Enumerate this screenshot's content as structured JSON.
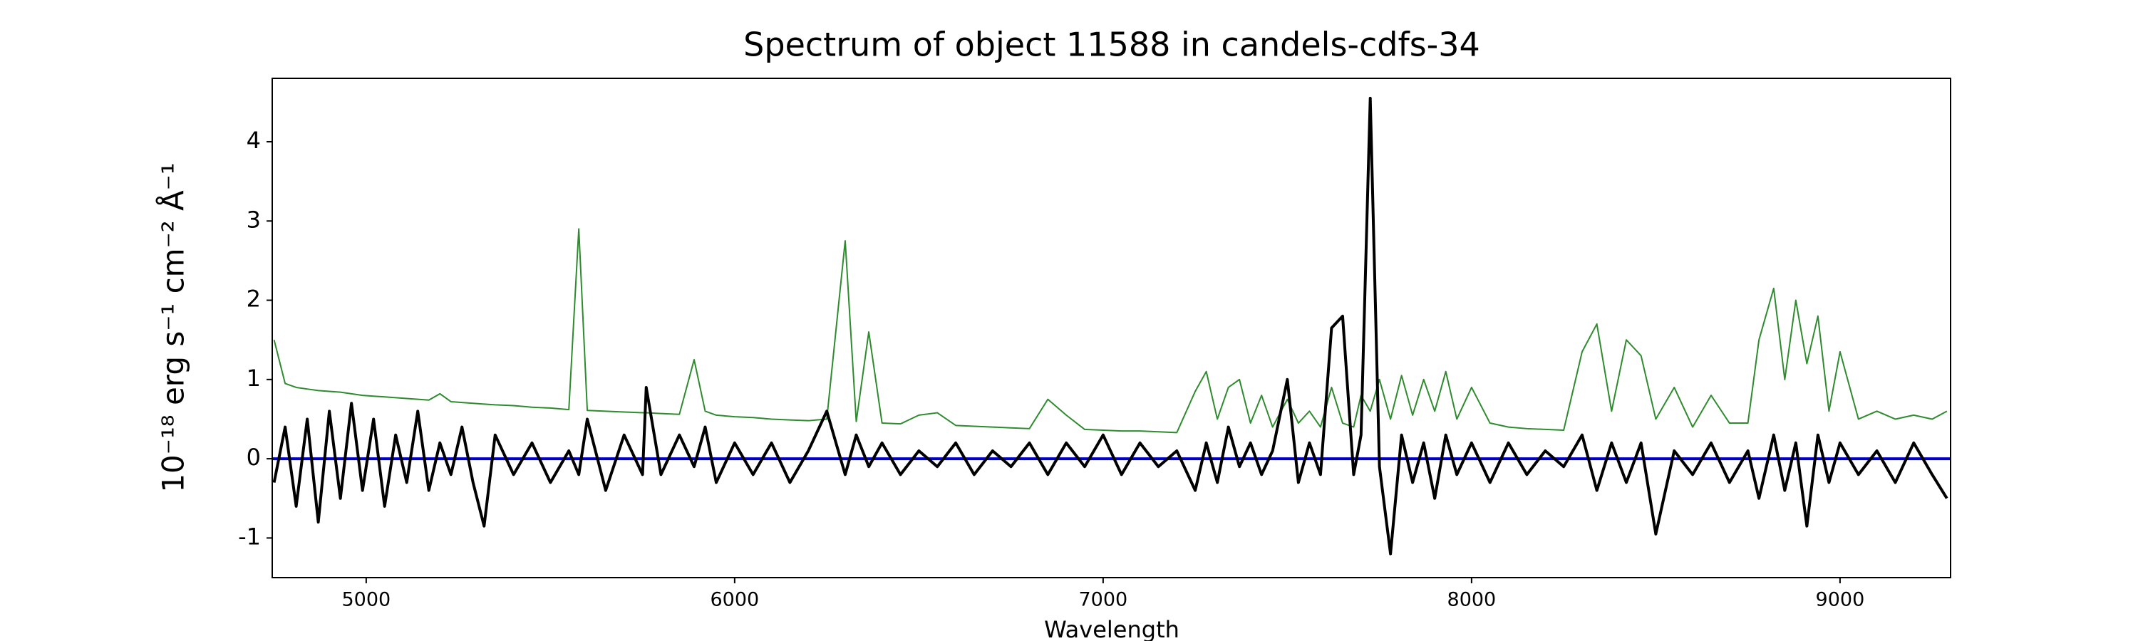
{
  "chart_data": {
    "type": "line",
    "title": "Spectrum of object 11588 in candels-cdfs-34",
    "x_label": "Wavelength",
    "y_label": "10⁻¹⁸ erg s⁻¹ cm⁻² Å⁻¹",
    "x": [
      4750,
      4780,
      4810,
      4840,
      4870,
      4900,
      4930,
      4960,
      4990,
      5020,
      5050,
      5080,
      5110,
      5140,
      5170,
      5200,
      5230,
      5260,
      5290,
      5320,
      5350,
      5400,
      5450,
      5500,
      5550,
      5577,
      5600,
      5650,
      5700,
      5750,
      5760,
      5800,
      5850,
      5890,
      5920,
      5950,
      6000,
      6050,
      6100,
      6150,
      6200,
      6250,
      6300,
      6330,
      6364,
      6400,
      6450,
      6500,
      6550,
      6600,
      6650,
      6700,
      6750,
      6800,
      6850,
      6900,
      6950,
      7000,
      7050,
      7100,
      7150,
      7200,
      7250,
      7280,
      7310,
      7340,
      7370,
      7400,
      7430,
      7460,
      7500,
      7530,
      7560,
      7590,
      7620,
      7650,
      7680,
      7700,
      7725,
      7750,
      7780,
      7810,
      7840,
      7870,
      7900,
      7930,
      7960,
      8000,
      8050,
      8100,
      8150,
      8200,
      8250,
      8300,
      8340,
      8380,
      8420,
      8460,
      8500,
      8550,
      8600,
      8650,
      8700,
      8750,
      8780,
      8820,
      8850,
      8880,
      8910,
      8940,
      8970,
      9000,
      9050,
      9100,
      9150,
      9200,
      9250,
      9290
    ],
    "series": [
      {
        "color": "#2e8b2e",
        "width": 2,
        "values": [
          1.5,
          0.95,
          0.9,
          0.88,
          0.86,
          0.85,
          0.84,
          0.82,
          0.8,
          0.79,
          0.78,
          0.77,
          0.76,
          0.75,
          0.74,
          0.82,
          0.72,
          0.71,
          0.7,
          0.69,
          0.68,
          0.67,
          0.65,
          0.64,
          0.62,
          2.9,
          0.61,
          0.6,
          0.59,
          0.58,
          0.58,
          0.57,
          0.56,
          1.25,
          0.6,
          0.55,
          0.53,
          0.52,
          0.5,
          0.49,
          0.48,
          0.5,
          2.75,
          0.47,
          1.6,
          0.45,
          0.44,
          0.55,
          0.58,
          0.42,
          0.41,
          0.4,
          0.39,
          0.38,
          0.75,
          0.55,
          0.37,
          0.36,
          0.35,
          0.35,
          0.34,
          0.33,
          0.85,
          1.1,
          0.5,
          0.9,
          1.0,
          0.45,
          0.8,
          0.4,
          0.75,
          0.45,
          0.6,
          0.4,
          0.9,
          0.45,
          0.4,
          0.8,
          0.6,
          1.0,
          0.5,
          1.05,
          0.55,
          1.0,
          0.6,
          1.1,
          0.5,
          0.9,
          0.45,
          0.4,
          0.38,
          0.37,
          0.36,
          1.35,
          1.7,
          0.6,
          1.5,
          1.3,
          0.5,
          0.9,
          0.4,
          0.8,
          0.45,
          0.45,
          1.5,
          2.15,
          1.0,
          2.0,
          1.2,
          1.8,
          0.6,
          1.35,
          0.5,
          0.6,
          0.5,
          0.55,
          0.5,
          0.6
        ]
      },
      {
        "color": "#000000",
        "width": 4,
        "values": [
          -0.3,
          0.4,
          -0.6,
          0.5,
          -0.8,
          0.6,
          -0.5,
          0.7,
          -0.4,
          0.5,
          -0.6,
          0.3,
          -0.3,
          0.6,
          -0.4,
          0.2,
          -0.2,
          0.4,
          -0.3,
          -0.85,
          0.3,
          -0.2,
          0.2,
          -0.3,
          0.1,
          -0.2,
          0.5,
          -0.4,
          0.3,
          -0.2,
          0.9,
          -0.2,
          0.3,
          -0.1,
          0.4,
          -0.3,
          0.2,
          -0.2,
          0.2,
          -0.3,
          0.1,
          0.6,
          -0.2,
          0.3,
          -0.1,
          0.2,
          -0.2,
          0.1,
          -0.1,
          0.2,
          -0.2,
          0.1,
          -0.1,
          0.2,
          -0.2,
          0.2,
          -0.1,
          0.3,
          -0.2,
          0.2,
          -0.1,
          0.1,
          -0.4,
          0.2,
          -0.3,
          0.4,
          -0.1,
          0.2,
          -0.2,
          0.1,
          1.0,
          -0.3,
          0.2,
          -0.2,
          1.65,
          1.8,
          -0.2,
          0.3,
          4.55,
          -0.1,
          -1.2,
          0.3,
          -0.3,
          0.2,
          -0.5,
          0.3,
          -0.2,
          0.2,
          -0.3,
          0.2,
          -0.2,
          0.1,
          -0.1,
          0.3,
          -0.4,
          0.2,
          -0.3,
          0.2,
          -0.95,
          0.1,
          -0.2,
          0.2,
          -0.3,
          0.1,
          -0.5,
          0.3,
          -0.4,
          0.2,
          -0.85,
          0.3,
          -0.3,
          0.2,
          -0.2,
          0.1,
          -0.3,
          0.2,
          -0.2,
          -0.5
        ]
      }
    ],
    "zero_line": {
      "value": 0,
      "color": "#0000cc"
    },
    "xlim": [
      4745,
      9300
    ],
    "ylim": [
      -1.5,
      4.8
    ],
    "xticks": [
      5000,
      6000,
      7000,
      8000,
      9000
    ],
    "yticks": [
      -1,
      0,
      1,
      2,
      3,
      4
    ]
  }
}
